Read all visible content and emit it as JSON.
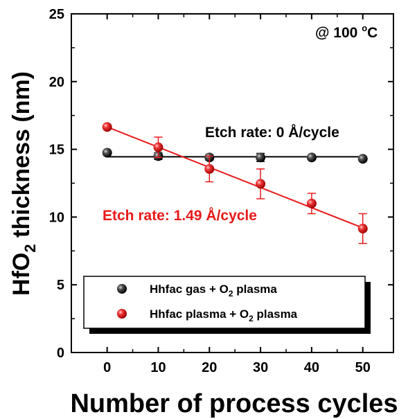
{
  "chart_data": {
    "type": "scatter",
    "title": "",
    "xlabel": "Number of process cycles",
    "ylabel": "HfO2 thickness (nm)",
    "ylabel_main": "HfO",
    "ylabel_sub": "2",
    "ylabel_rest": " thickness (nm)",
    "xlim": [
      -7,
      56
    ],
    "ylim": [
      0,
      25
    ],
    "xticks": [
      0,
      10,
      20,
      30,
      40,
      50
    ],
    "yticks": [
      0,
      5,
      10,
      15,
      20,
      25
    ],
    "condition_label": "@ 100 °C",
    "condition_main": "@ 100 ",
    "condition_sup": "o",
    "condition_unit": "C",
    "series": [
      {
        "name": "Hhfac gas + O2 plasma",
        "legend_pre": "Hhfac gas + O",
        "legend_sub": "2",
        "legend_post": " plasma",
        "color": "#000000",
        "x": [
          0,
          10,
          20,
          30,
          40,
          50
        ],
        "y": [
          14.75,
          14.5,
          14.4,
          14.4,
          14.4,
          14.3
        ],
        "yerr": [
          0.15,
          0.25,
          0.2,
          0.3,
          0.15,
          0.15
        ],
        "fit": {
          "x0": 0,
          "y0": 14.45,
          "x1": 50,
          "y1": 14.45
        },
        "annotation": "Etch rate: 0 Å/cycle"
      },
      {
        "name": "Hhfac plasma + O2 plasma",
        "legend_pre": "Hhfac plasma + O",
        "legend_sub": "2",
        "legend_post": " plasma",
        "color": "#e8191a",
        "x": [
          0,
          10,
          20,
          30,
          40,
          50
        ],
        "y": [
          16.65,
          15.15,
          13.55,
          12.45,
          11.0,
          9.15
        ],
        "yerr": [
          0.1,
          0.75,
          0.95,
          1.1,
          0.75,
          1.1
        ],
        "fit": {
          "x0": 0,
          "y0": 16.65,
          "x1": 50,
          "y1": 9.2
        },
        "annotation": "Etch rate: 1.49 Å/cycle"
      }
    ],
    "legend_position": "bottom-left"
  }
}
